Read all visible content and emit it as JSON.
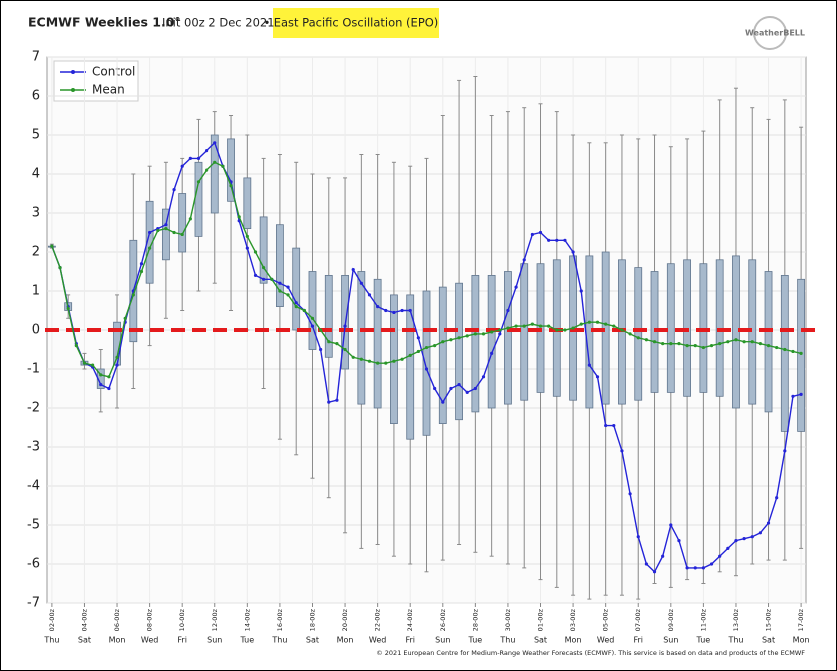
{
  "chart_data": {
    "type": "boxline",
    "title": "ECMWF Weeklies 1.0°",
    "subtitle": "Init 00z 2 Dec 2021",
    "separator": "•",
    "index_name": "East Pacific Oscillation (EPO)",
    "logo": "WeatherBELL",
    "footer": "© 2021 European Centre for Medium-Range Weather Forecasts (ECMWF). This service is based on data and products of the ECMWF",
    "xlim": [
      -0.3,
      46.3
    ],
    "ylim": [
      -7,
      7
    ],
    "yticks": [
      -7,
      -6,
      -5,
      -4,
      -3,
      -2,
      -1,
      0,
      1,
      2,
      3,
      4,
      5,
      6,
      7
    ],
    "xticks": [
      {
        "value": 0,
        "label": "02-00z"
      },
      {
        "value": 2,
        "label": "04-00z"
      },
      {
        "value": 4,
        "label": "06-00z"
      },
      {
        "value": 6,
        "label": "08-00z"
      },
      {
        "value": 8,
        "label": "10-00z"
      },
      {
        "value": 10,
        "label": "12-00z"
      },
      {
        "value": 12,
        "label": "14-00z"
      },
      {
        "value": 14,
        "label": "16-00z"
      },
      {
        "value": 16,
        "label": "18-00z"
      },
      {
        "value": 18,
        "label": "20-00z"
      },
      {
        "value": 20,
        "label": "22-00z"
      },
      {
        "value": 22,
        "label": "24-00z"
      },
      {
        "value": 24,
        "label": "26-00z"
      },
      {
        "value": 26,
        "label": "28-00z"
      },
      {
        "value": 28,
        "label": "30-00z"
      },
      {
        "value": 30,
        "label": "01-00z"
      },
      {
        "value": 32,
        "label": "03-00z"
      },
      {
        "value": 34,
        "label": "05-00z"
      },
      {
        "value": 36,
        "label": "07-00z"
      },
      {
        "value": 38,
        "label": "09-00z"
      },
      {
        "value": 40,
        "label": "11-00z"
      },
      {
        "value": 42,
        "label": "13-00z"
      },
      {
        "value": 44,
        "label": "15-00z"
      },
      {
        "value": 46,
        "label": "17-00z"
      }
    ],
    "weekdays": [
      "Thu",
      "Sat",
      "Mon",
      "Wed",
      "Fri",
      "Sun",
      "Tue",
      "Thu",
      "Sat",
      "Mon",
      "Wed",
      "Fri",
      "Sun",
      "Tue",
      "Thu",
      "Sat",
      "Mon",
      "Wed",
      "Fri",
      "Sun",
      "Tue",
      "Thu",
      "Sat",
      "Mon"
    ],
    "grid": true,
    "legend": "upper left",
    "reference_line": {
      "value": 0,
      "color": "#e41a1c"
    },
    "x": [
      0,
      0.5,
      1,
      1.5,
      2,
      2.5,
      3,
      3.5,
      4,
      4.5,
      5,
      5.5,
      6,
      6.5,
      7,
      7.5,
      8,
      8.5,
      9,
      9.5,
      10,
      10.5,
      11,
      11.5,
      12,
      12.5,
      13,
      13.5,
      14,
      14.5,
      15,
      15.5,
      16,
      16.5,
      17,
      17.5,
      18,
      18.5,
      19,
      19.5,
      20,
      20.5,
      21,
      21.5,
      22,
      22.5,
      23,
      23.5,
      24,
      24.5,
      25,
      25.5,
      26,
      26.5,
      27,
      27.5,
      28,
      28.5,
      29,
      29.5,
      30,
      30.5,
      31,
      31.5,
      32,
      32.5,
      33,
      33.5,
      34,
      34.5,
      35,
      35.5,
      36,
      36.5,
      37,
      37.5,
      38,
      38.5,
      39,
      39.5,
      40,
      40.5,
      41,
      41.5,
      42,
      42.5,
      43,
      43.5,
      44,
      44.5,
      45,
      45.5,
      46
    ],
    "series": [
      {
        "name": "Control",
        "color": "#2424d8",
        "values": [
          2.15,
          1.6,
          0.6,
          -0.35,
          -0.85,
          -0.95,
          -1.4,
          -1.5,
          -0.9,
          0.2,
          1.0,
          1.7,
          2.5,
          2.6,
          2.7,
          3.6,
          4.2,
          4.4,
          4.4,
          4.6,
          4.8,
          4.2,
          3.8,
          2.8,
          2.1,
          1.4,
          1.3,
          1.3,
          1.2,
          1.1,
          0.7,
          0.5,
          0.1,
          -0.5,
          -1.85,
          -1.8,
          0.1,
          1.55,
          1.2,
          0.9,
          0.6,
          0.5,
          0.45,
          0.5,
          0.5,
          -0.2,
          -1.0,
          -1.5,
          -1.85,
          -1.5,
          -1.4,
          -1.6,
          -1.5,
          -1.2,
          -0.6,
          -0.1,
          0.5,
          1.1,
          1.8,
          2.45,
          2.5,
          2.3,
          2.3,
          2.3,
          2.0,
          1.0,
          -0.9,
          -1.2,
          -2.45,
          -2.45,
          -3.1,
          -4.2,
          -5.3,
          -6.0,
          -6.2,
          -5.8,
          -5.0,
          -5.4,
          -6.1,
          -6.1,
          -6.1,
          -6.0,
          -5.8,
          -5.6,
          -5.4,
          -5.35,
          -5.3,
          -5.2,
          -4.95,
          -4.3,
          -3.1,
          -1.7,
          -1.65
        ]
      },
      {
        "name": "Mean",
        "color": "#2a962a",
        "values": [
          2.15,
          1.6,
          0.55,
          -0.4,
          -0.85,
          -0.9,
          -1.15,
          -1.2,
          -0.7,
          0.3,
          0.9,
          1.5,
          2.1,
          2.55,
          2.6,
          2.5,
          2.45,
          2.85,
          3.8,
          4.1,
          4.3,
          4.2,
          3.7,
          2.9,
          2.4,
          2.0,
          1.6,
          1.3,
          1.0,
          0.9,
          0.6,
          0.5,
          0.3,
          0.0,
          -0.3,
          -0.35,
          -0.5,
          -0.7,
          -0.75,
          -0.8,
          -0.85,
          -0.85,
          -0.8,
          -0.75,
          -0.65,
          -0.55,
          -0.45,
          -0.4,
          -0.3,
          -0.25,
          -0.2,
          -0.15,
          -0.1,
          -0.1,
          -0.05,
          0.0,
          0.05,
          0.1,
          0.1,
          0.15,
          0.1,
          0.1,
          0.0,
          0.0,
          0.05,
          0.15,
          0.2,
          0.2,
          0.15,
          0.1,
          0.0,
          -0.1,
          -0.2,
          -0.25,
          -0.3,
          -0.35,
          -0.35,
          -0.35,
          -0.4,
          -0.4,
          -0.45,
          -0.4,
          -0.35,
          -0.3,
          -0.25,
          -0.3,
          -0.3,
          -0.35,
          -0.4,
          -0.45,
          -0.5,
          -0.55,
          -0.6
        ]
      }
    ],
    "boxes": {
      "x": [
        0,
        1,
        2,
        3,
        4,
        5,
        6,
        7,
        8,
        9,
        10,
        11,
        12,
        13,
        14,
        15,
        16,
        17,
        18,
        19,
        20,
        21,
        22,
        23,
        24,
        25,
        26,
        27,
        28,
        29,
        30,
        31,
        32,
        33,
        34,
        35,
        36,
        37,
        38,
        39,
        40,
        41,
        42,
        43,
        44,
        45,
        46
      ],
      "min": [
        2.1,
        0.3,
        -1.0,
        -2.1,
        -2.0,
        -1.5,
        -0.4,
        0.3,
        0.5,
        1.0,
        1.2,
        0.5,
        0.0,
        -1.5,
        -2.8,
        -3.2,
        -3.8,
        -4.3,
        -5.2,
        -5.6,
        -5.5,
        -5.8,
        -6.0,
        -6.2,
        -5.9,
        -5.5,
        -5.7,
        -5.8,
        -6.0,
        -6.1,
        -6.4,
        -6.6,
        -6.8,
        -6.9,
        -6.8,
        -6.8,
        -6.9,
        -6.5,
        -6.6,
        -6.4,
        -6.5,
        -6.2,
        -6.3,
        -6.0,
        -5.9,
        -5.9,
        -5.6
      ],
      "q1": [
        2.15,
        0.5,
        -0.9,
        -1.5,
        -0.9,
        -0.3,
        1.2,
        1.8,
        2.0,
        2.4,
        3.0,
        3.3,
        2.6,
        1.2,
        0.6,
        0.0,
        -0.5,
        -0.7,
        -1.0,
        -1.9,
        -2.0,
        -2.4,
        -2.8,
        -2.7,
        -2.4,
        -2.3,
        -2.1,
        -2.0,
        -1.9,
        -1.8,
        -1.6,
        -1.7,
        -1.8,
        -2.0,
        -1.9,
        -1.9,
        -1.8,
        -1.6,
        -1.6,
        -1.7,
        -1.6,
        -1.7,
        -2.0,
        -1.9,
        -2.1,
        -2.6,
        -2.6
      ],
      "q3": [
        2.15,
        0.7,
        -0.8,
        -1.0,
        0.2,
        2.3,
        3.3,
        3.1,
        3.5,
        4.3,
        5.0,
        4.9,
        3.9,
        2.9,
        2.7,
        2.1,
        1.5,
        1.4,
        1.4,
        1.5,
        1.3,
        0.9,
        0.9,
        1.0,
        1.1,
        1.2,
        1.4,
        1.4,
        1.5,
        1.7,
        1.7,
        1.8,
        1.9,
        1.9,
        2.0,
        1.8,
        1.6,
        1.5,
        1.7,
        1.8,
        1.7,
        1.8,
        1.9,
        1.8,
        1.5,
        1.4,
        1.3
      ],
      "max": [
        2.2,
        0.9,
        -0.6,
        -0.5,
        0.9,
        4.0,
        4.2,
        4.3,
        4.4,
        5.4,
        5.6,
        5.5,
        5.0,
        4.4,
        4.5,
        4.3,
        4.0,
        3.9,
        3.9,
        4.5,
        4.5,
        4.3,
        4.2,
        4.4,
        5.5,
        6.4,
        6.5,
        5.5,
        5.6,
        5.7,
        5.8,
        5.6,
        5.0,
        4.8,
        4.8,
        5.0,
        4.9,
        5.0,
        4.7,
        4.9,
        5.1,
        5.9,
        6.2,
        5.7,
        5.4,
        5.9,
        5.2
      ]
    }
  }
}
